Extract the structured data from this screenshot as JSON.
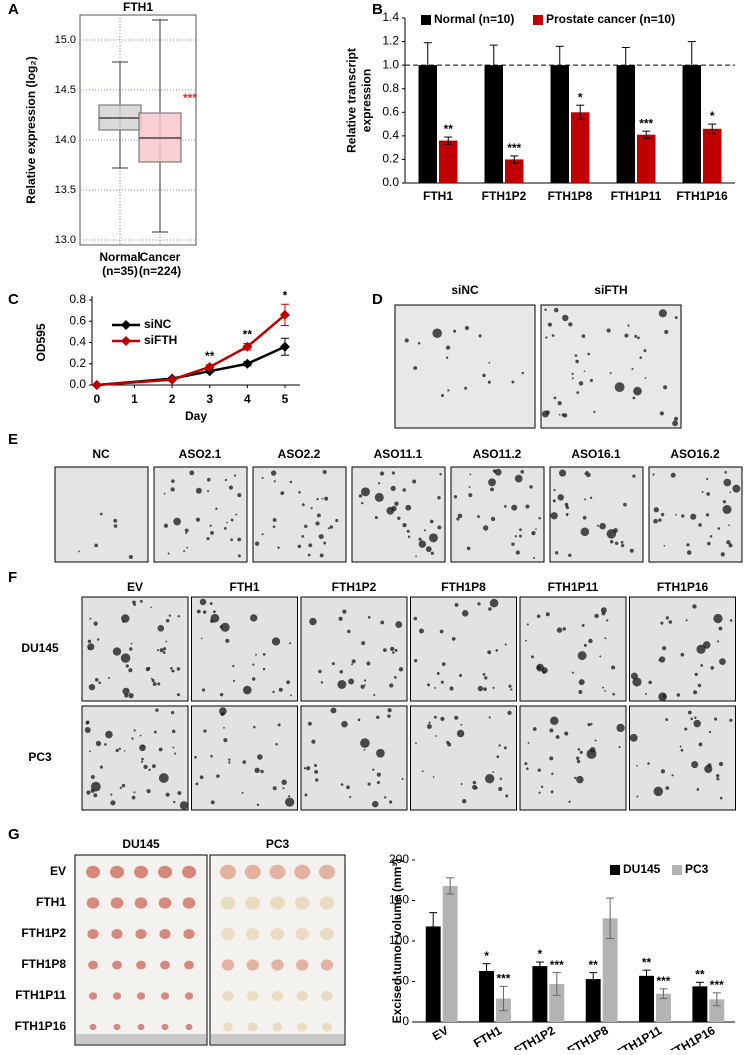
{
  "panel_letters": [
    "A",
    "B",
    "C",
    "D",
    "E",
    "F",
    "G"
  ],
  "chart_data": [
    {
      "type": "box",
      "title": "FTH1",
      "ylabel": "Relative expression (log₂)",
      "categories": [
        "Normal",
        "Cancer"
      ],
      "subcategories": [
        "(n=35)",
        "(n=224)"
      ],
      "boxes": [
        {
          "low": 13.72,
          "q1": 14.1,
          "median": 14.22,
          "q3": 14.35,
          "high": 14.78
        },
        {
          "low": 13.08,
          "q1": 13.78,
          "median": 14.02,
          "q3": 14.27,
          "high": 15.2
        }
      ],
      "colors": [
        "#d3d3d3",
        "#f9c7cb"
      ],
      "annotation": "***",
      "annotation_color": "#ff2020",
      "ylim": [
        12.95,
        15.25
      ],
      "yticks": [
        {
          "value": 13,
          "label": "13.0"
        },
        {
          "value": 13.5,
          "label": "13.5"
        },
        {
          "value": 14,
          "label": "14.0"
        },
        {
          "value": 14.5,
          "label": "14.5"
        },
        {
          "value": 15,
          "label": "15.0"
        }
      ],
      "grid": true
    },
    {
      "type": "bar",
      "ylabel": [
        "Relative transcript",
        "expression"
      ],
      "categories": [
        "FTH1",
        "FTH1P2",
        "FTH1P8",
        "FTH1P11",
        "FTH1P16"
      ],
      "series": [
        {
          "name": "Normal (n=10)",
          "color": "#000000",
          "values": [
            1,
            1,
            1,
            1,
            1
          ],
          "errors": [
            0.19,
            0.17,
            0.16,
            0.15,
            0.2
          ]
        },
        {
          "name": "Prostate cancer (n=10)",
          "color": "#c00000",
          "values": [
            0.36,
            0.2,
            0.6,
            0.41,
            0.46
          ],
          "errors": [
            0.03,
            0.03,
            0.06,
            0.03,
            0.04
          ],
          "annotations": [
            "**",
            "***",
            "*",
            "***",
            "*"
          ]
        }
      ],
      "reference_line": 1,
      "ylim": [
        0,
        1.4
      ],
      "yticks": [
        {
          "value": 0,
          "label": "0.0"
        },
        0.2,
        0.4,
        0.6,
        0.8,
        {
          "value": 1,
          "label": "1.0"
        },
        1.2,
        1.4
      ],
      "legend": "top"
    },
    {
      "type": "line",
      "xlabel": "Day",
      "ylabel": "OD595",
      "x": [
        0,
        2,
        3,
        4,
        5
      ],
      "xlim": [
        -0.13,
        5.4
      ],
      "xticks": [
        0,
        1,
        2,
        3,
        4,
        5
      ],
      "series": [
        {
          "name": "siNC",
          "color": "#000000",
          "values": [
            0,
            0.06,
            0.13,
            0.2,
            0.36
          ],
          "errors": [
            0,
            0.01,
            0.01,
            0.02,
            0.08
          ]
        },
        {
          "name": "siFTH",
          "color": "#c00000",
          "values": [
            0,
            0.05,
            0.17,
            0.36,
            0.66
          ],
          "errors": [
            0,
            0.01,
            0.02,
            0.03,
            0.1
          ],
          "annotations": [
            null,
            null,
            "**",
            "**",
            "*"
          ]
        }
      ],
      "ylim": [
        0,
        0.8
      ],
      "yticks": [
        {
          "value": 0,
          "label": "0.0"
        },
        0.2,
        0.4,
        0.6,
        0.8
      ],
      "legend": "upper left"
    },
    {
      "type": "bar",
      "ylabel": [
        "Excised tumor volume (mm³)"
      ],
      "categories": [
        "EV",
        "FTH1",
        "FTH1P2",
        "FTH1P8",
        "FTH1P11",
        "FTH1P16"
      ],
      "series": [
        {
          "name": "DU145",
          "color": "#000000",
          "values": [
            118,
            63,
            69,
            53,
            57,
            44
          ],
          "errors": [
            17,
            9,
            5,
            8,
            7,
            5
          ],
          "annotations": [
            null,
            "*",
            "*",
            "**",
            "**",
            "**"
          ]
        },
        {
          "name": "PC3",
          "color": "#b3b3b3",
          "values": [
            168,
            29,
            47,
            128,
            35,
            28
          ],
          "errors": [
            10,
            15,
            14,
            25,
            6,
            8
          ],
          "annotations": [
            null,
            "***",
            "***",
            null,
            "***",
            "***"
          ]
        }
      ],
      "ylim": [
        0,
        200
      ],
      "yticks": [
        0,
        50,
        100,
        150,
        200
      ],
      "legend": "upper right"
    }
  ],
  "images": {
    "D": {
      "captions": [
        "siNC",
        "siFTH"
      ]
    },
    "E": {
      "captions": [
        "NC",
        "ASO2.1",
        "ASO2.2",
        "ASO11.1",
        "ASO11.2",
        "ASO16.1",
        "ASO16.2"
      ]
    },
    "F": {
      "columns": [
        "EV",
        "FTH1",
        "FTH1P2",
        "FTH1P8",
        "FTH1P11",
        "FTH1P16"
      ],
      "rows": [
        "DU145",
        "PC3"
      ]
    },
    "G": {
      "titles": [
        "DU145",
        "PC3"
      ],
      "rows": [
        "EV",
        "FTH1",
        "FTH1P2",
        "FTH1P8",
        "FTH1P11",
        "FTH1P16"
      ]
    }
  }
}
